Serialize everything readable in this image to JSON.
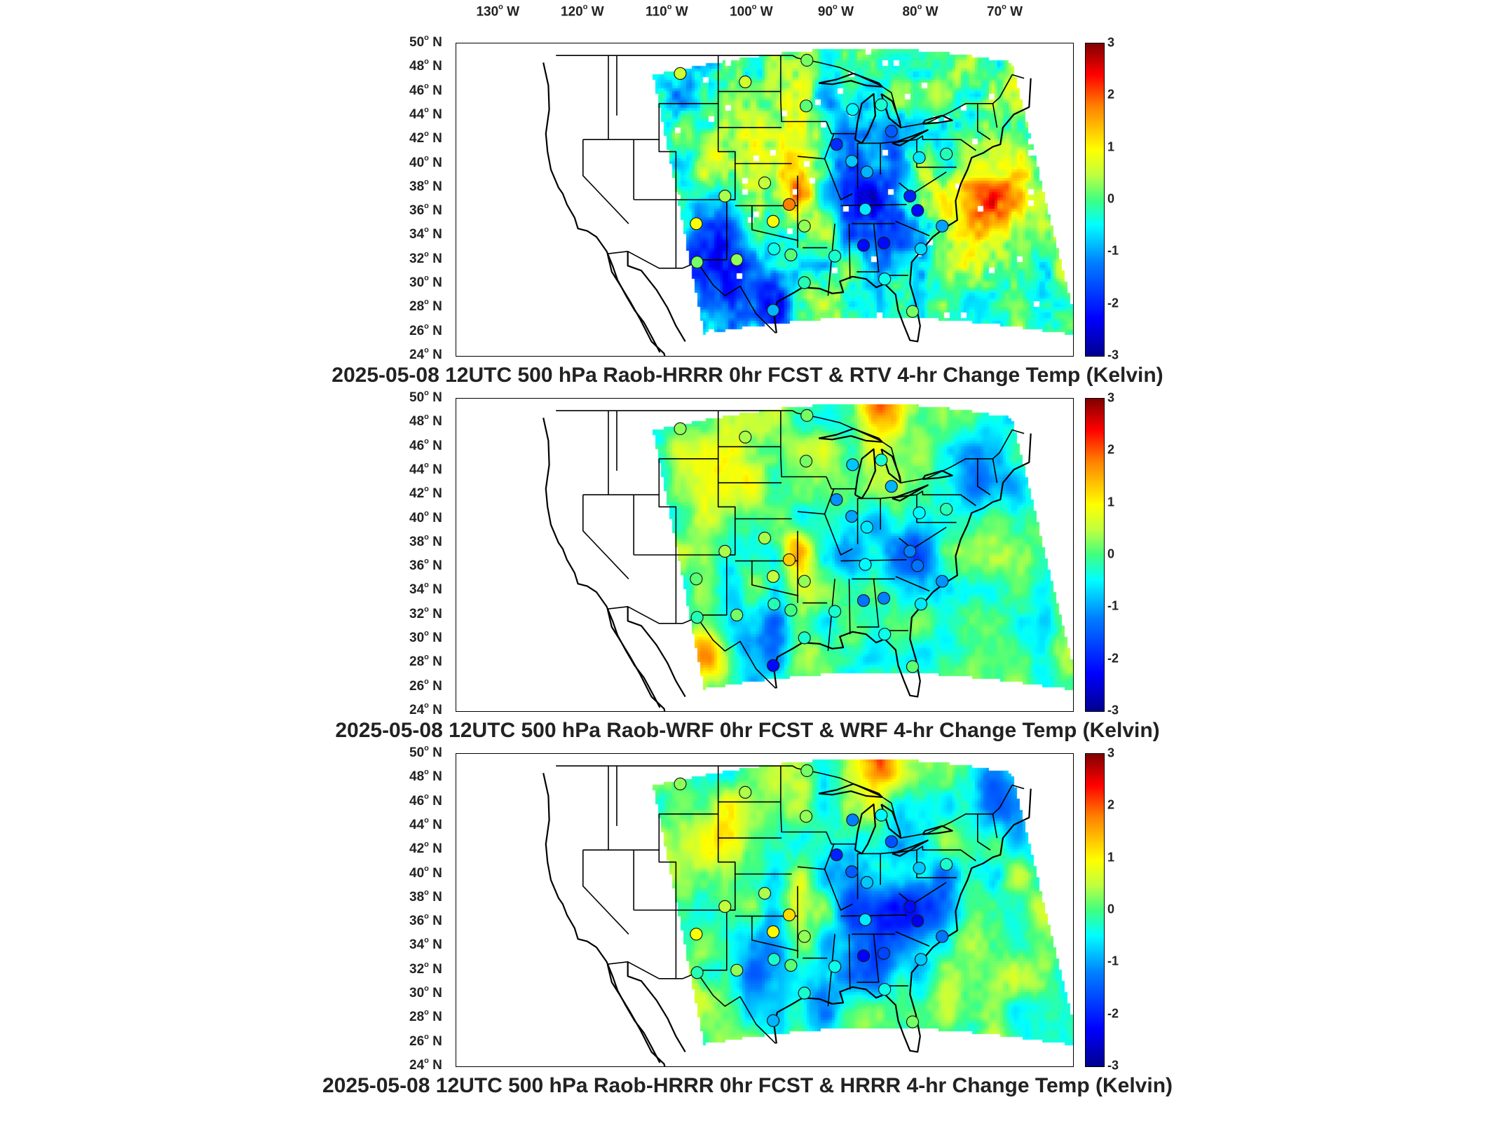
{
  "longitude_labels": [
    {
      "deg": "130",
      "hemi": "W"
    },
    {
      "deg": "120",
      "hemi": "W"
    },
    {
      "deg": "110",
      "hemi": "W"
    },
    {
      "deg": "100",
      "hemi": "W"
    },
    {
      "deg": "90",
      "hemi": "W"
    },
    {
      "deg": "80",
      "hemi": "W"
    },
    {
      "deg": "70",
      "hemi": "W"
    }
  ],
  "latitude_labels": [
    {
      "deg": "50",
      "hemi": "N"
    },
    {
      "deg": "48",
      "hemi": "N"
    },
    {
      "deg": "46",
      "hemi": "N"
    },
    {
      "deg": "44",
      "hemi": "N"
    },
    {
      "deg": "42",
      "hemi": "N"
    },
    {
      "deg": "40",
      "hemi": "N"
    },
    {
      "deg": "38",
      "hemi": "N"
    },
    {
      "deg": "36",
      "hemi": "N"
    },
    {
      "deg": "34",
      "hemi": "N"
    },
    {
      "deg": "32",
      "hemi": "N"
    },
    {
      "deg": "30",
      "hemi": "N"
    },
    {
      "deg": "28",
      "hemi": "N"
    },
    {
      "deg": "26",
      "hemi": "N"
    },
    {
      "deg": "24",
      "hemi": "N"
    }
  ],
  "colorbar": {
    "ticks": [
      "3",
      "2",
      "1",
      "0",
      "-1",
      "-2",
      "-3"
    ],
    "colors": [
      "#00008f",
      "#0000ff",
      "#0080ff",
      "#00ffff",
      "#40ff80",
      "#ffff00",
      "#ff8000",
      "#ff0000",
      "#800000"
    ]
  },
  "panels": [
    {
      "title": "2025-05-08 12UTC 500 hPa Raob-HRRR 0hr FCST & RTV 4-hr Change Temp (Kelvin)"
    },
    {
      "title": "2025-05-08 12UTC 500 hPa Raob-WRF 0hr FCST & WRF 4-hr Change Temp (Kelvin)"
    },
    {
      "title": "2025-05-08 12UTC 500 hPa Raob-HRRR 0hr FCST & HRRR 4-hr Change Temp (Kelvin)"
    }
  ],
  "stations": [
    {
      "lon": -108.5,
      "lat": 47.5,
      "v": [
        0.6,
        0.3,
        0.3
      ]
    },
    {
      "lon": -100.8,
      "lat": 46.8,
      "v": [
        0.6,
        0.4,
        0.4
      ]
    },
    {
      "lon": -93.5,
      "lat": 48.6,
      "v": [
        0.2,
        0.2,
        0.2
      ]
    },
    {
      "lon": -93.6,
      "lat": 44.8,
      "v": [
        0.1,
        0.2,
        0.3
      ]
    },
    {
      "lon": -88.1,
      "lat": 44.5,
      "v": [
        -0.5,
        -0.8,
        -1.2
      ]
    },
    {
      "lon": -84.7,
      "lat": 44.9,
      "v": [
        -0.3,
        -0.3,
        -0.5
      ]
    },
    {
      "lon": -83.5,
      "lat": 42.7,
      "v": [
        -1.5,
        -0.9,
        -1.6
      ]
    },
    {
      "lon": -90.0,
      "lat": 41.6,
      "v": [
        -1.9,
        -1.1,
        -2.0
      ]
    },
    {
      "lon": -88.2,
      "lat": 40.2,
      "v": [
        -0.8,
        -1.0,
        -1.5
      ]
    },
    {
      "lon": -86.4,
      "lat": 39.3,
      "v": [
        -0.9,
        -0.6,
        -0.8
      ]
    },
    {
      "lon": -80.2,
      "lat": 40.5,
      "v": [
        -0.6,
        -0.5,
        -0.8
      ]
    },
    {
      "lon": -77.0,
      "lat": 40.8,
      "v": [
        -0.2,
        -0.2,
        -0.3
      ]
    },
    {
      "lon": -106.6,
      "lat": 35.0,
      "v": [
        0.9,
        0.1,
        0.9
      ]
    },
    {
      "lon": -103.2,
      "lat": 37.3,
      "v": [
        0.4,
        0.4,
        0.5
      ]
    },
    {
      "lon": -98.5,
      "lat": 38.4,
      "v": [
        0.5,
        0.4,
        0.4
      ]
    },
    {
      "lon": -95.6,
      "lat": 36.6,
      "v": [
        1.8,
        1.3,
        1.2
      ]
    },
    {
      "lon": -97.5,
      "lat": 35.2,
      "v": [
        0.9,
        0.5,
        1.0
      ]
    },
    {
      "lon": -93.8,
      "lat": 34.8,
      "v": [
        0.3,
        0.3,
        0.3
      ]
    },
    {
      "lon": -86.6,
      "lat": 36.2,
      "v": [
        -0.6,
        -0.5,
        -0.6
      ]
    },
    {
      "lon": -81.3,
      "lat": 37.3,
      "v": [
        -2.0,
        -1.2,
        -2.2
      ]
    },
    {
      "lon": -80.4,
      "lat": 36.1,
      "v": [
        -2.2,
        -1.3,
        -2.4
      ]
    },
    {
      "lon": -77.5,
      "lat": 34.8,
      "v": [
        -1.0,
        -1.1,
        -1.3
      ]
    },
    {
      "lon": -80.0,
      "lat": 32.9,
      "v": [
        -0.7,
        -0.6,
        -0.8
      ]
    },
    {
      "lon": -84.4,
      "lat": 33.4,
      "v": [
        -2.2,
        -1.2,
        -1.7
      ]
    },
    {
      "lon": -86.8,
      "lat": 33.2,
      "v": [
        -2.2,
        -1.3,
        -2.3
      ]
    },
    {
      "lon": -90.2,
      "lat": 32.3,
      "v": [
        -0.3,
        -0.3,
        -0.4
      ]
    },
    {
      "lon": -95.4,
      "lat": 32.4,
      "v": [
        0.1,
        0.0,
        0.1
      ]
    },
    {
      "lon": -97.4,
      "lat": 32.9,
      "v": [
        -0.4,
        -0.2,
        -0.3
      ]
    },
    {
      "lon": -101.8,
      "lat": 32.0,
      "v": [
        0.3,
        0.2,
        0.3
      ]
    },
    {
      "lon": -106.5,
      "lat": 31.8,
      "v": [
        0.2,
        -0.2,
        -0.2
      ]
    },
    {
      "lon": -93.8,
      "lat": 30.1,
      "v": [
        -0.2,
        -0.3,
        -0.3
      ]
    },
    {
      "lon": -84.3,
      "lat": 30.4,
      "v": [
        -0.4,
        -0.4,
        -0.4
      ]
    },
    {
      "lon": -81.0,
      "lat": 27.7,
      "v": [
        0.2,
        0.1,
        0.2
      ]
    },
    {
      "lon": -97.5,
      "lat": 27.8,
      "v": [
        -0.9,
        -2.2,
        -0.9
      ]
    }
  ]
}
